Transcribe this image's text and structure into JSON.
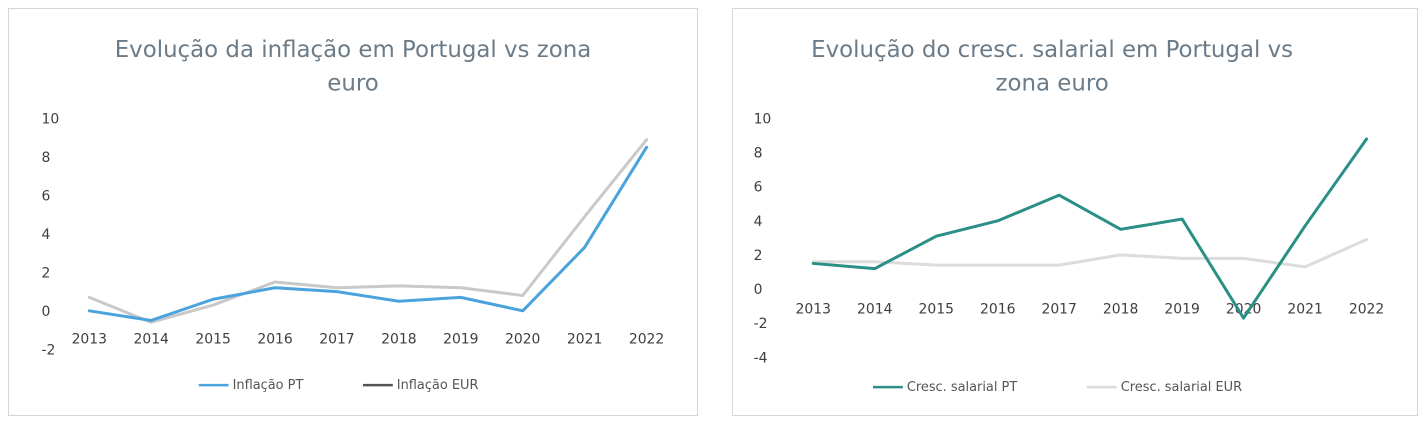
{
  "chart_data": [
    {
      "type": "line",
      "title_lines": [
        "Evolução da inflação em Portugal vs zona",
        "euro"
      ],
      "xlabel": "",
      "ylabel": "",
      "categories": [
        "2013",
        "2014",
        "2015",
        "2016",
        "2017",
        "2018",
        "2019",
        "2020",
        "2021",
        "2022"
      ],
      "ylim": [
        -2,
        10
      ],
      "yticks": [
        "10",
        "8",
        "6",
        "4",
        "2",
        "0",
        "-2"
      ],
      "grid": false,
      "legend": "bottom",
      "series": [
        {
          "name": "Inflação PT",
          "color": "#4aa3dc",
          "values": [
            0.0,
            -0.5,
            0.6,
            1.2,
            1.0,
            0.5,
            0.7,
            0.0,
            3.3,
            8.5
          ]
        },
        {
          "name": "Inflação EUR",
          "color": "#c9c9c9",
          "legend_color": "#555555",
          "values": [
            0.7,
            -0.6,
            0.3,
            1.5,
            1.2,
            1.3,
            1.2,
            0.8,
            4.9,
            8.9
          ]
        }
      ]
    },
    {
      "type": "line",
      "title_lines": [
        "Evolução do cresc. salarial em Portugal vs",
        "zona euro"
      ],
      "xlabel": "",
      "ylabel": "",
      "categories": [
        "2013",
        "2014",
        "2015",
        "2016",
        "2017",
        "2018",
        "2019",
        "2020",
        "2021",
        "2022"
      ],
      "ylim": [
        -4,
        10
      ],
      "yticks": [
        "10",
        "8",
        "6",
        "4",
        "2",
        "0",
        "-2",
        "-4"
      ],
      "grid": false,
      "legend": "bottom",
      "series": [
        {
          "name": "Cresc. salarial PT",
          "color": "#2a8f86",
          "values": [
            1.5,
            1.2,
            3.1,
            4.0,
            5.5,
            3.5,
            4.1,
            -1.7,
            3.7,
            8.8
          ]
        },
        {
          "name": "Cresc. salarial EUR",
          "color": "#dcdcdc",
          "values": [
            1.6,
            1.6,
            1.4,
            1.4,
            1.4,
            2.0,
            1.8,
            1.8,
            1.3,
            2.9
          ]
        }
      ]
    }
  ]
}
